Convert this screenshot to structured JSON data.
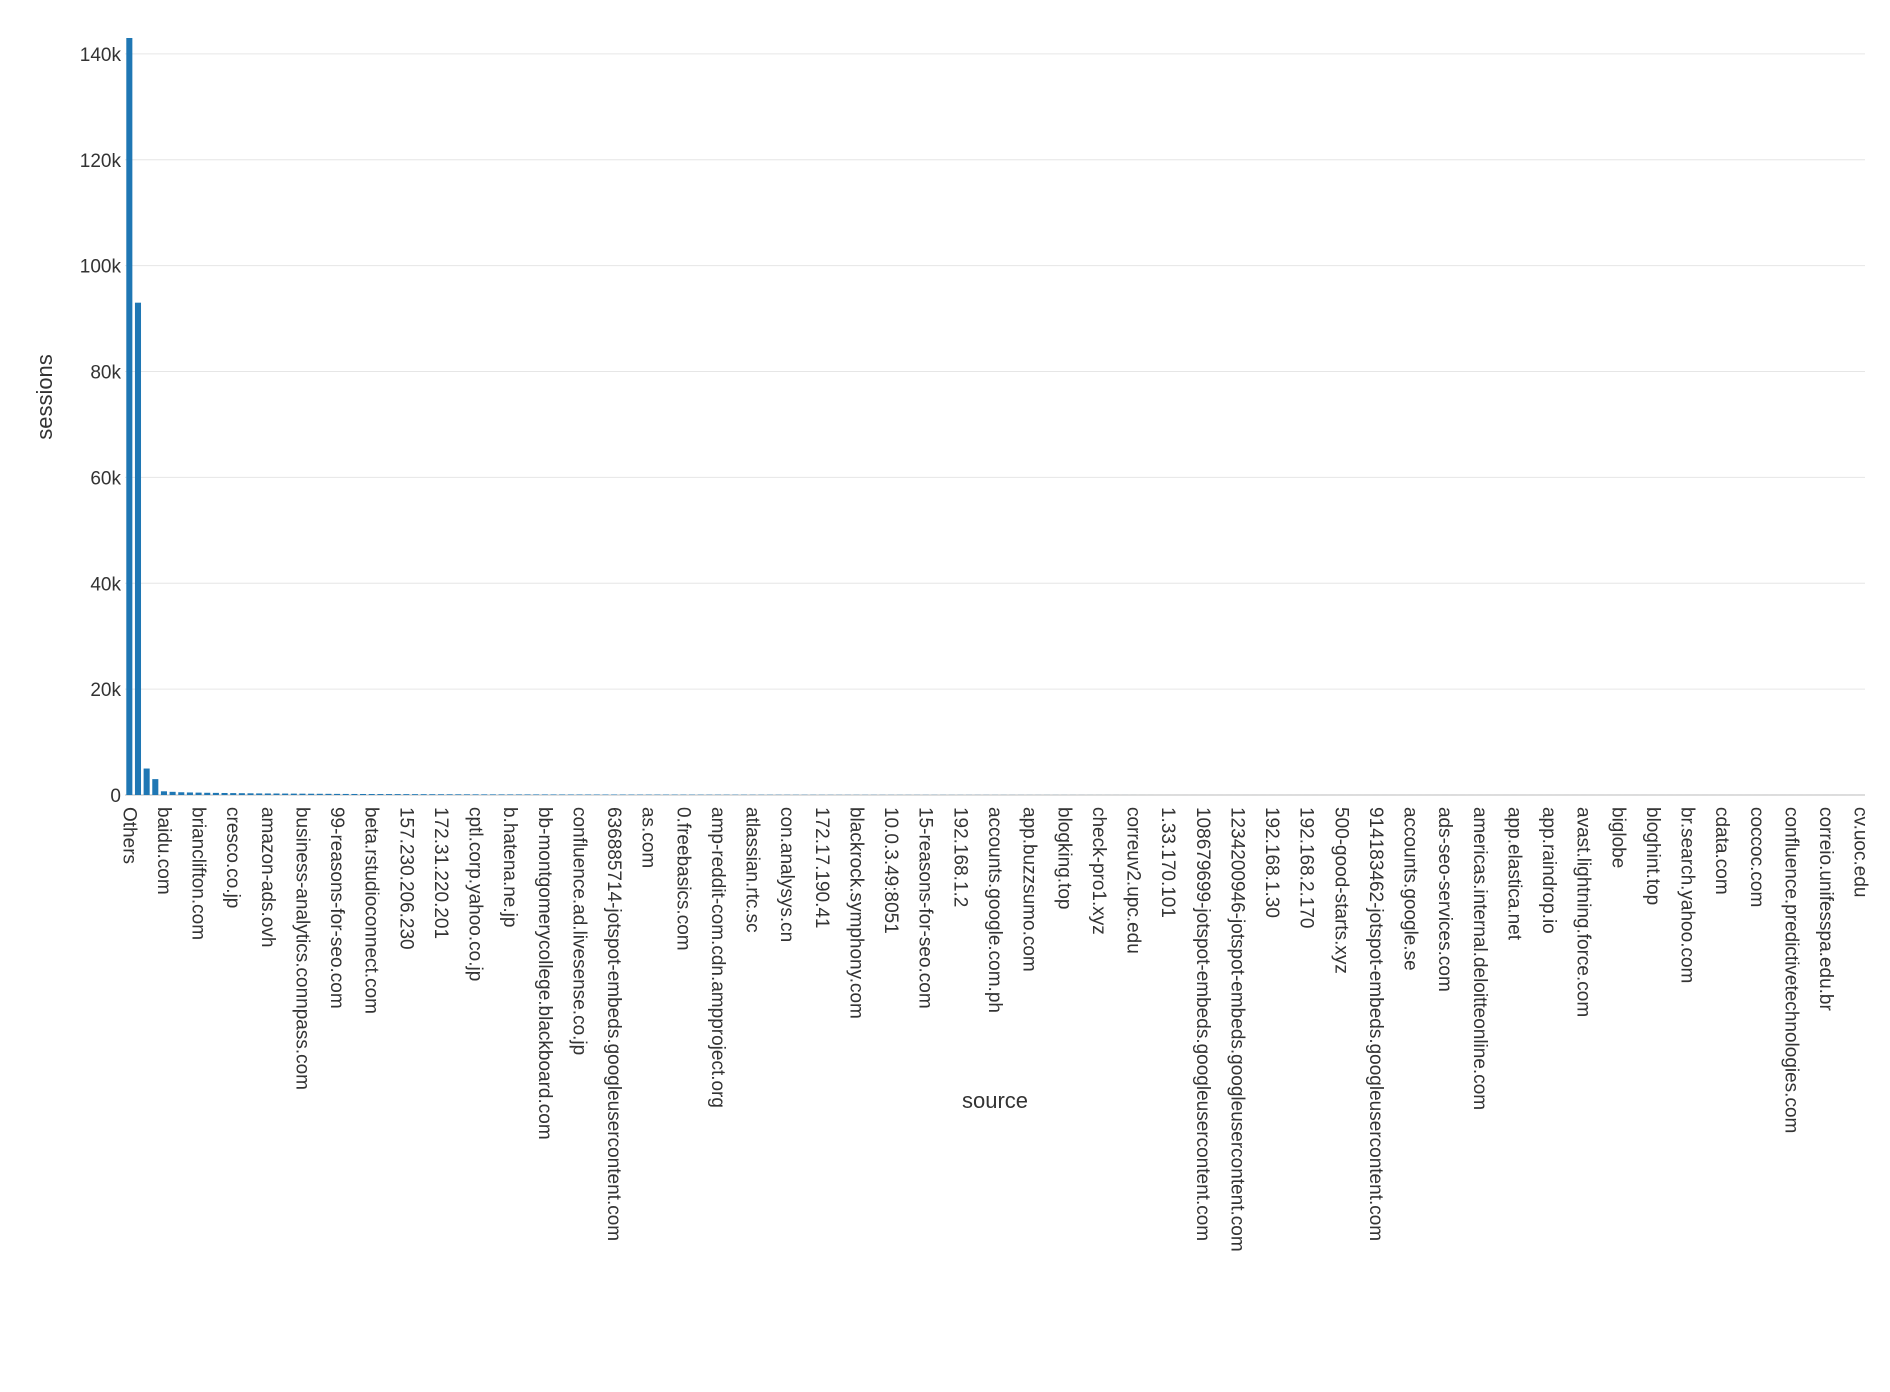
{
  "chart_data": {
    "type": "bar",
    "color": "#1f77b4",
    "grid": true,
    "x_label": "source",
    "y_label": "sessions",
    "ylim": [
      0,
      143000
    ],
    "yticks": [
      0,
      {
        "value": 20000,
        "label": "20k"
      },
      {
        "value": 40000,
        "label": "40k"
      },
      {
        "value": 60000,
        "label": "60k"
      },
      {
        "value": 80000,
        "label": "80k"
      },
      {
        "value": 100000,
        "label": "100k"
      },
      {
        "value": 120000,
        "label": "120k"
      },
      {
        "value": 140000,
        "label": "140k"
      }
    ],
    "categories": [
      "Others",
      null,
      null,
      null,
      "baidu.com",
      null,
      null,
      null,
      "brianclifton.com",
      null,
      null,
      null,
      "cresco.co.jp",
      null,
      null,
      null,
      "amazon-ads.ovh",
      null,
      null,
      null,
      "business-analytics.connpass.com",
      null,
      null,
      null,
      "99-reasons-for-seo.com",
      null,
      null,
      null,
      "beta.rstudioconnect.com",
      null,
      null,
      null,
      "157.230.206.230",
      null,
      null,
      null,
      "172.31.220.201",
      null,
      null,
      null,
      "cptl.corp.yahoo.co.jp",
      null,
      null,
      null,
      "b.hatena.ne.jp",
      null,
      null,
      null,
      "bb-montgomerycollege.blackboard.com",
      null,
      null,
      null,
      "confluence.ad.livesense.co.jp",
      null,
      null,
      null,
      "636885714-jotspot-embeds.googleusercontent.com",
      null,
      null,
      null,
      "as.com",
      null,
      null,
      null,
      "0.freebasics.com",
      null,
      null,
      null,
      "amp-reddit-com.cdn.ampproject.org",
      null,
      null,
      null,
      "atlassian.rtc.sc",
      null,
      null,
      null,
      "con.analysys.cn",
      null,
      null,
      null,
      "172.17.190.41",
      null,
      null,
      null,
      "blackrock.symphony.com",
      null,
      null,
      null,
      "10.0.3.49:8051",
      null,
      null,
      null,
      "15-reasons-for-seo.com",
      null,
      null,
      null,
      "192.168.1.2",
      null,
      null,
      null,
      "accounts.google.com.ph",
      null,
      null,
      null,
      "app.buzzsumo.com",
      null,
      null,
      null,
      "blogking.top",
      null,
      null,
      null,
      "check-pro1.xyz",
      null,
      null,
      null,
      "correuv2.upc.edu",
      null,
      null,
      null,
      "1.33.170.101",
      null,
      null,
      null,
      "108679699-jotspot-embeds.googleusercontent.com",
      null,
      null,
      null,
      "1234200946-jotspot-embeds.googleusercontent.com",
      null,
      null,
      null,
      "192.168.1.30",
      null,
      null,
      null,
      "192.168.2.170",
      null,
      null,
      null,
      "500-good-starts.xyz",
      null,
      null,
      null,
      "914183462-jotspot-embeds.googleusercontent.com",
      null,
      null,
      null,
      "accounts.google.se",
      null,
      null,
      null,
      "ads-seo-services.com",
      null,
      null,
      null,
      "americas.internal.deloitteonline.com",
      null,
      null,
      null,
      "app.elastica.net",
      null,
      null,
      null,
      "app.raindrop.io",
      null,
      null,
      null,
      "avast.lightning.force.com",
      null,
      null,
      null,
      "biglobe",
      null,
      null,
      null,
      "bloghint.top",
      null,
      null,
      null,
      "br.search.yahoo.com",
      null,
      null,
      null,
      "cdata.com",
      null,
      null,
      null,
      "coccoc.com",
      null,
      null,
      null,
      "confluence.predictivetechnologies.com",
      null,
      null,
      null,
      "correio.unifesspa.edu.br",
      null,
      null,
      null,
      "cv.uoc.edu"
    ],
    "values": [
      143000,
      93000,
      5000,
      3000,
      700,
      600,
      520,
      480,
      450,
      420,
      400,
      380,
      360,
      340,
      320,
      300,
      290,
      280,
      270,
      260,
      250,
      240,
      230,
      220,
      210,
      200,
      195,
      190,
      185,
      180,
      175,
      170,
      165,
      160,
      155,
      150,
      145,
      140,
      135,
      130,
      125,
      120,
      118,
      116,
      114,
      112,
      110,
      108,
      106,
      104,
      102,
      100,
      98,
      96,
      94,
      92,
      90,
      88,
      86,
      84,
      82,
      80,
      78,
      76,
      74,
      72,
      70,
      68,
      66,
      64,
      62,
      60,
      58,
      56,
      54,
      52,
      50,
      48,
      46,
      44,
      42,
      40,
      39,
      38,
      37,
      36,
      35,
      34,
      33,
      32,
      31,
      30,
      29,
      28,
      27,
      26,
      25,
      24,
      23,
      22,
      21,
      20,
      19,
      18,
      17,
      16,
      15,
      14,
      13,
      12,
      11,
      10,
      9,
      8,
      7,
      6,
      5,
      4,
      3,
      2,
      1,
      1,
      1,
      1,
      1,
      1,
      1,
      1,
      1,
      1,
      1,
      1,
      1,
      1,
      1,
      1,
      1,
      1,
      1,
      1,
      1,
      1,
      1,
      1,
      1,
      1,
      1,
      1,
      1,
      1,
      1,
      1,
      1,
      1,
      1,
      1,
      1,
      1,
      1,
      1,
      1,
      1,
      1,
      1,
      1,
      1,
      1,
      1,
      1,
      1,
      1,
      1,
      1,
      1,
      1,
      1,
      1,
      1,
      1,
      1,
      1,
      1,
      1,
      1,
      1,
      1,
      1,
      1,
      1,
      1,
      1,
      1,
      1,
      1,
      1,
      1,
      1,
      1,
      1,
      1,
      1
    ]
  }
}
